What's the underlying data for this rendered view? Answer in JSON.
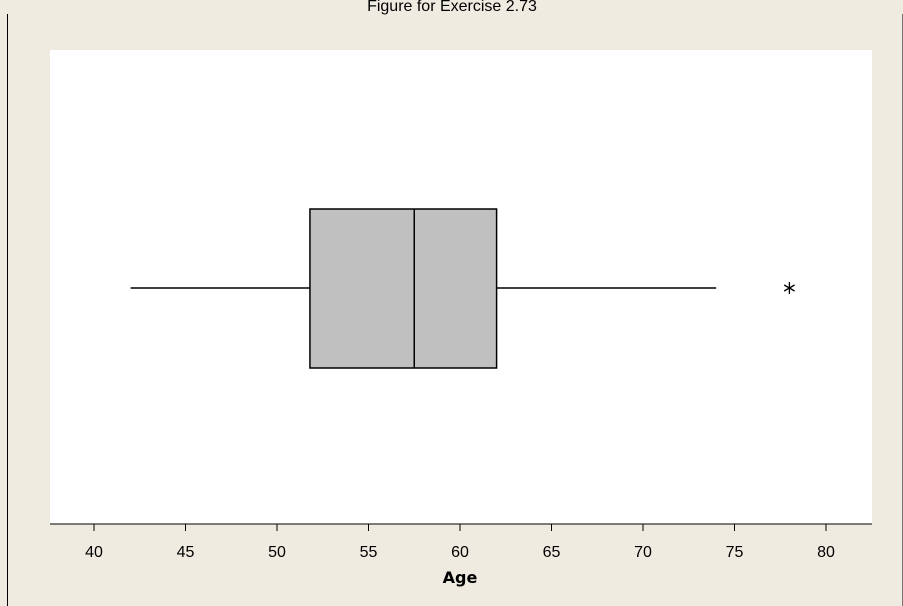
{
  "figure": {
    "title": "Figure for Exercise 2.73",
    "colors": {
      "frame_background": "#efebe1",
      "plot_background": "#ffffff",
      "box_fill": "#c0c0c0",
      "stroke": "#000000"
    }
  },
  "chart_data": {
    "type": "boxplot",
    "title": "Figure for Exercise 2.73",
    "xlabel": "Age",
    "ylabel": "",
    "orientation": "horizontal",
    "xlim": [
      37.5,
      82.5
    ],
    "xticks": [
      40,
      45,
      50,
      55,
      60,
      65,
      70,
      75,
      80
    ],
    "xtick_labels": [
      "40",
      "45",
      "50",
      "55",
      "60",
      "65",
      "70",
      "75",
      "80"
    ],
    "grid": false,
    "box": {
      "whisker_low": 42,
      "q1": 51.8,
      "median": 57.5,
      "q3": 62,
      "whisker_high": 74
    },
    "outliers": [
      78
    ],
    "outlier_marker": "asterisk"
  }
}
